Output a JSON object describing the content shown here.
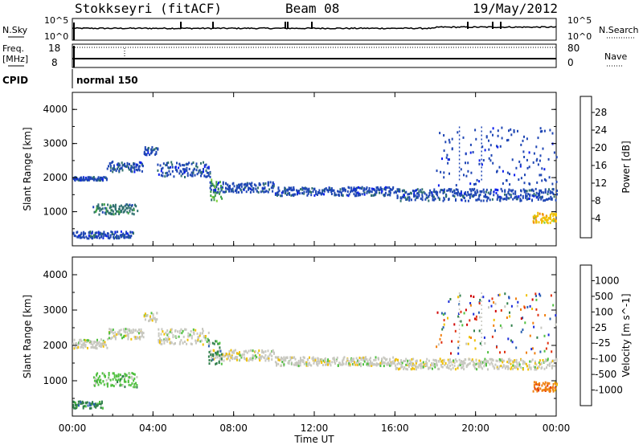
{
  "header": {
    "station": "Stokkseyri (fitACF)",
    "beam": "Beam 08",
    "date": "19/May/2012"
  },
  "top_panels": {
    "nsky_label": "N.Sky",
    "nsky_ticks": [
      "10^5",
      "10^0"
    ],
    "nsearch_label": "N.Search",
    "nsearch_ticks": [
      "10^5",
      "10^0"
    ],
    "freq_label": "Freq.",
    "freq_unit": "[MHz]",
    "freq_ticks": [
      "18",
      "8"
    ],
    "nave_label": "Nave",
    "nave_ticks": [
      "80",
      "0"
    ],
    "cpid_label": "CPID",
    "cpid_value": "normal 150"
  },
  "chart_data": [
    {
      "type": "heatmap",
      "panel": "power",
      "xlabel": "Time UT",
      "ylabel": "Slant Range [km]",
      "x_ticks": [
        "00:00",
        "04:00",
        "08:00",
        "12:00",
        "16:00",
        "20:00",
        "00:00"
      ],
      "x_hours": [
        0,
        4,
        8,
        12,
        16,
        20,
        24
      ],
      "xlim": [
        0,
        24
      ],
      "ylim": [
        0,
        4500
      ],
      "y_ticks": [
        1000,
        2000,
        3000,
        4000
      ],
      "colorbar_label": "Power [dB]",
      "colorbar_ticks": [
        "4",
        "8",
        "12",
        "16",
        "20",
        "24",
        "28"
      ],
      "colorbar_range": [
        0,
        30
      ],
      "colors": [
        "#0a1cf0",
        "#1f46b4",
        "#2e6f6e",
        "#3fa046",
        "#7fd03a",
        "#f0c000",
        "#f08010",
        "#e03010",
        "#d00000"
      ],
      "bands": [
        {
          "t0": 0.0,
          "t1": 1.7,
          "r0": 1950,
          "r1": 2050,
          "color_idx": 1
        },
        {
          "t0": 1.7,
          "t1": 3.5,
          "r0": 2200,
          "r1": 2500,
          "color_idx": 1
        },
        {
          "t0": 3.5,
          "t1": 4.2,
          "r0": 2700,
          "r1": 2950,
          "color_idx": 1
        },
        {
          "t0": 4.2,
          "t1": 6.8,
          "r0": 2050,
          "r1": 2500,
          "color_idx": 1
        },
        {
          "t0": 6.8,
          "t1": 10.0,
          "r0": 1600,
          "r1": 1900,
          "color_idx": 1
        },
        {
          "t0": 10.0,
          "t1": 16.0,
          "r0": 1500,
          "r1": 1750,
          "color_idx": 1
        },
        {
          "t0": 16.0,
          "t1": 24.0,
          "r0": 1350,
          "r1": 1700,
          "color_idx": 1
        },
        {
          "t0": 1.0,
          "t1": 3.2,
          "r0": 950,
          "r1": 1250,
          "color_idx": 2
        },
        {
          "t0": 6.8,
          "t1": 7.4,
          "r0": 1350,
          "r1": 2000,
          "color_idx": 3
        },
        {
          "t0": 0.0,
          "t1": 3.0,
          "r0": 250,
          "r1": 450,
          "color_idx": 1
        },
        {
          "t0": 22.8,
          "t1": 24.0,
          "r0": 700,
          "r1": 1000,
          "color_idx": 5
        }
      ]
    },
    {
      "type": "heatmap",
      "panel": "velocity",
      "xlabel": "Time UT",
      "ylabel": "Slant Range [km]",
      "x_ticks": [
        "00:00",
        "04:00",
        "08:00",
        "12:00",
        "16:00",
        "20:00",
        "00:00"
      ],
      "x_hours": [
        0,
        4,
        8,
        12,
        16,
        20,
        24
      ],
      "xlim": [
        0,
        24
      ],
      "ylim": [
        0,
        4500
      ],
      "y_ticks": [
        1000,
        2000,
        3000,
        4000
      ],
      "colorbar_label": "Velocity [m s^-1]",
      "colorbar_ticks": [
        "1000",
        "500",
        "100",
        "25",
        "-25",
        "-100",
        "-500",
        "-1000"
      ],
      "colors": [
        "#1a2ad8",
        "#2a60b0",
        "#2f7f4a",
        "#50c040",
        "#c8c8c0",
        "#f0c000",
        "#f08010",
        "#e03010",
        "#d00000"
      ],
      "bands": [
        {
          "t0": 0.0,
          "t1": 1.7,
          "r0": 1950,
          "r1": 2200,
          "color_idx": 4
        },
        {
          "t0": 1.7,
          "t1": 3.5,
          "r0": 2200,
          "r1": 2500,
          "color_idx": 4
        },
        {
          "t0": 3.5,
          "t1": 4.2,
          "r0": 2700,
          "r1": 2950,
          "color_idx": 4
        },
        {
          "t0": 4.2,
          "t1": 6.8,
          "r0": 2050,
          "r1": 2500,
          "color_idx": 4
        },
        {
          "t0": 6.8,
          "t1": 10.0,
          "r0": 1600,
          "r1": 1900,
          "color_idx": 4
        },
        {
          "t0": 10.0,
          "t1": 16.0,
          "r0": 1450,
          "r1": 1700,
          "color_idx": 4
        },
        {
          "t0": 16.0,
          "t1": 24.0,
          "r0": 1350,
          "r1": 1650,
          "color_idx": 4
        },
        {
          "t0": 1.0,
          "t1": 3.2,
          "r0": 850,
          "r1": 1250,
          "color_idx": 3
        },
        {
          "t0": 6.7,
          "t1": 7.4,
          "r0": 1500,
          "r1": 2200,
          "color_idx": 2
        },
        {
          "t0": 0.0,
          "t1": 1.5,
          "r0": 250,
          "r1": 450,
          "color_idx": 2
        },
        {
          "t0": 22.8,
          "t1": 24.0,
          "r0": 700,
          "r1": 1000,
          "color_idx": 6
        }
      ]
    }
  ]
}
